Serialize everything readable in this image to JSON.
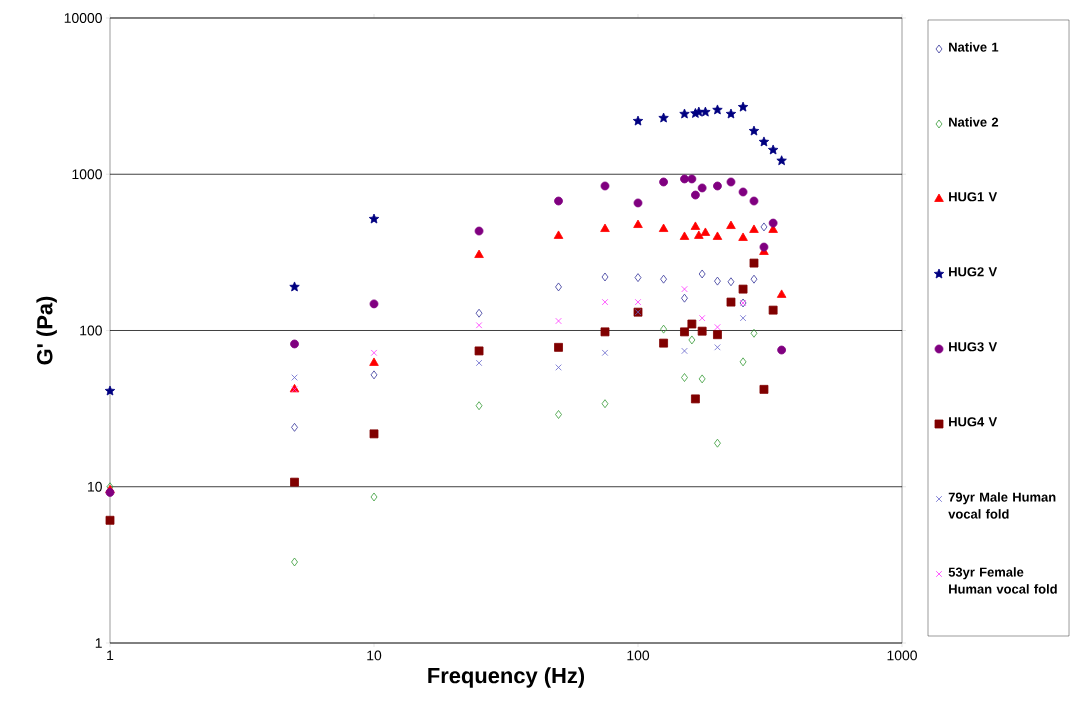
{
  "chart_data": {
    "type": "scatter",
    "xlabel": "Frequency (Hz)",
    "ylabel": "G' (Pa)",
    "log": "xy",
    "xlim": [
      1,
      1000
    ],
    "ylim": [
      1,
      10000
    ],
    "xticks": [
      1,
      10,
      100,
      1000
    ],
    "yticks": [
      1,
      10,
      100,
      1000,
      10000
    ],
    "grid": "y",
    "legend": "right",
    "series": [
      {
        "name": "Native 1",
        "color": "#333399",
        "marker": "diamond",
        "x": [
          5,
          10,
          25,
          50,
          75,
          100,
          125,
          150,
          175,
          200,
          225,
          250,
          275,
          300
        ],
        "values": [
          24,
          52,
          129,
          190,
          220,
          218,
          213,
          161,
          230,
          207,
          205,
          150,
          213,
          460
        ]
      },
      {
        "name": "Native 2",
        "color": "#339933",
        "marker": "diamond",
        "x": [
          1,
          5,
          10,
          25,
          50,
          75,
          125,
          150,
          160,
          175,
          200,
          250,
          275
        ],
        "values": [
          10,
          3.3,
          8.6,
          33,
          29,
          34,
          102,
          50,
          87,
          49,
          19,
          63,
          96
        ]
      },
      {
        "name": "HUG1 V",
        "color": "#ff0000",
        "marker": "triangle",
        "x": [
          1,
          5,
          10,
          25,
          50,
          75,
          100,
          125,
          150,
          165,
          170,
          180,
          200,
          225,
          250,
          275,
          300,
          325,
          350
        ],
        "values": [
          9.5,
          42,
          62,
          304,
          403,
          446,
          473,
          446,
          397,
          460,
          403,
          421,
          397,
          466,
          391,
          440,
          318,
          440,
          169
        ]
      },
      {
        "name": "HUG2 V",
        "color": "#000080",
        "marker": "star",
        "x": [
          1,
          5,
          10,
          100,
          125,
          150,
          165,
          170,
          180,
          200,
          225,
          250,
          275,
          300,
          325,
          350
        ],
        "values": [
          41,
          190,
          517,
          2190,
          2290,
          2430,
          2450,
          2500,
          2500,
          2580,
          2430,
          2690,
          1890,
          1610,
          1430,
          1220
        ]
      },
      {
        "name": "HUG3 V",
        "color": "#800080",
        "marker": "circle",
        "x": [
          1,
          5,
          10,
          25,
          50,
          75,
          100,
          125,
          150,
          160,
          165,
          175,
          200,
          225,
          250,
          275,
          300,
          325,
          350
        ],
        "values": [
          9.2,
          82,
          148,
          433,
          674,
          841,
          655,
          892,
          933,
          933,
          736,
          817,
          841,
          892,
          770,
          674,
          342,
          487,
          75
        ]
      },
      {
        "name": "HUG4 V",
        "color": "#800000",
        "marker": "square",
        "x": [
          1,
          5,
          10,
          25,
          50,
          75,
          100,
          125,
          150,
          160,
          165,
          175,
          200,
          225,
          250,
          275,
          300,
          325
        ],
        "values": [
          6.1,
          10.7,
          21.8,
          74,
          78,
          98,
          131,
          83,
          98,
          110,
          36.5,
          99,
          94,
          152,
          184,
          270,
          42,
          135
        ]
      },
      {
        "name": "79yr Male Human vocal fold",
        "color": "#6666cc",
        "marker": "cross",
        "x": [
          5,
          25,
          50,
          75,
          100,
          150,
          200,
          250
        ],
        "values": [
          50,
          62,
          58,
          72,
          131,
          74,
          78,
          120
        ]
      },
      {
        "name": "53yr Female Human vocal fold",
        "color": "#ff33ff",
        "marker": "cross",
        "x": [
          5,
          10,
          25,
          50,
          75,
          100,
          150,
          175,
          200,
          250
        ],
        "values": [
          42,
          72,
          108,
          115,
          152,
          152,
          184,
          120,
          105,
          150
        ]
      }
    ]
  }
}
